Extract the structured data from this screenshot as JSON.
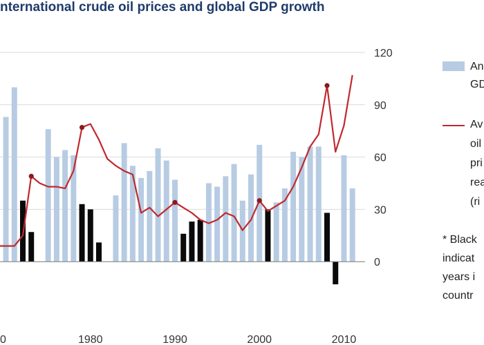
{
  "chart_data": {
    "type": "bar",
    "title": "nternational crude oil prices and global GDP growth",
    "x_ticks": [
      "0",
      "1980",
      "1990",
      "2000",
      "2010"
    ],
    "y_right_ticks": [
      "120",
      "90",
      "60",
      "30",
      "0"
    ],
    "y_right_range": [
      -30,
      120
    ],
    "x_range": [
      1969.3,
      2012.5
    ],
    "series": [
      {
        "name_lines": [
          "An",
          "GD"
        ],
        "kind": "bar",
        "color": "#b7cce3",
        "data": [
          [
            1970,
            83
          ],
          [
            1971,
            100
          ],
          [
            1972,
            35
          ],
          [
            1973,
            17
          ],
          [
            1975,
            76
          ],
          [
            1976,
            60
          ],
          [
            1977,
            64
          ],
          [
            1978,
            61
          ],
          [
            1979,
            33
          ],
          [
            1980,
            30
          ],
          [
            1981,
            11
          ],
          [
            1983,
            38
          ],
          [
            1984,
            68
          ],
          [
            1985,
            55
          ],
          [
            1986,
            48
          ],
          [
            1987,
            52
          ],
          [
            1988,
            65
          ],
          [
            1989,
            58
          ],
          [
            1990,
            47
          ],
          [
            1991,
            16
          ],
          [
            1992,
            23
          ],
          [
            1993,
            24
          ],
          [
            1994,
            45
          ],
          [
            1995,
            43
          ],
          [
            1996,
            49
          ],
          [
            1997,
            56
          ],
          [
            1998,
            35
          ],
          [
            1999,
            50
          ],
          [
            2000,
            67
          ],
          [
            2001,
            30
          ],
          [
            2002,
            34
          ],
          [
            2003,
            42
          ],
          [
            2004,
            63
          ],
          [
            2005,
            60
          ],
          [
            2006,
            66
          ],
          [
            2007,
            66
          ],
          [
            2008,
            28
          ],
          [
            2009,
            -13
          ],
          [
            2010,
            61
          ],
          [
            2011,
            42
          ]
        ]
      },
      {
        "name_lines": [
          "Av",
          "oil",
          "pri",
          "rea",
          "(ri"
        ],
        "kind": "line",
        "color": "#c0282d",
        "data": [
          [
            1969.3,
            9
          ],
          [
            1970,
            9
          ],
          [
            1971,
            9
          ],
          [
            1972,
            15
          ],
          [
            1973,
            49
          ],
          [
            1974,
            45
          ],
          [
            1975,
            43
          ],
          [
            1976,
            43
          ],
          [
            1977,
            42
          ],
          [
            1978,
            52
          ],
          [
            1979,
            77
          ],
          [
            1980,
            79
          ],
          [
            1981,
            70
          ],
          [
            1982,
            59
          ],
          [
            1983,
            55
          ],
          [
            1984,
            52
          ],
          [
            1985,
            50
          ],
          [
            1986,
            28
          ],
          [
            1987,
            31
          ],
          [
            1988,
            26
          ],
          [
            1989,
            30
          ],
          [
            1990,
            34
          ],
          [
            1991,
            31
          ],
          [
            1992,
            28
          ],
          [
            1993,
            24
          ],
          [
            1994,
            22
          ],
          [
            1995,
            24
          ],
          [
            1996,
            28
          ],
          [
            1997,
            26
          ],
          [
            1998,
            18
          ],
          [
            1999,
            24
          ],
          [
            2000,
            35
          ],
          [
            2001,
            29
          ],
          [
            2002,
            32
          ],
          [
            2003,
            35
          ],
          [
            2004,
            43
          ],
          [
            2005,
            54
          ],
          [
            2006,
            66
          ],
          [
            2007,
            73
          ],
          [
            2008,
            101
          ],
          [
            2009,
            63
          ],
          [
            2010,
            78
          ],
          [
            2011,
            107
          ]
        ],
        "markers": [
          [
            1973,
            49
          ],
          [
            1979,
            77
          ],
          [
            1990,
            34
          ],
          [
            2000,
            35
          ],
          [
            2008,
            101
          ]
        ]
      }
    ],
    "black_bar_years": [
      1972,
      1973,
      1979,
      1980,
      1981,
      1991,
      1992,
      1993,
      2001,
      2008,
      2009
    ],
    "black_bar_color": "#0a0a0a",
    "footnote_lines": [
      "* Black",
      "indicat",
      "years i",
      "countr"
    ]
  }
}
